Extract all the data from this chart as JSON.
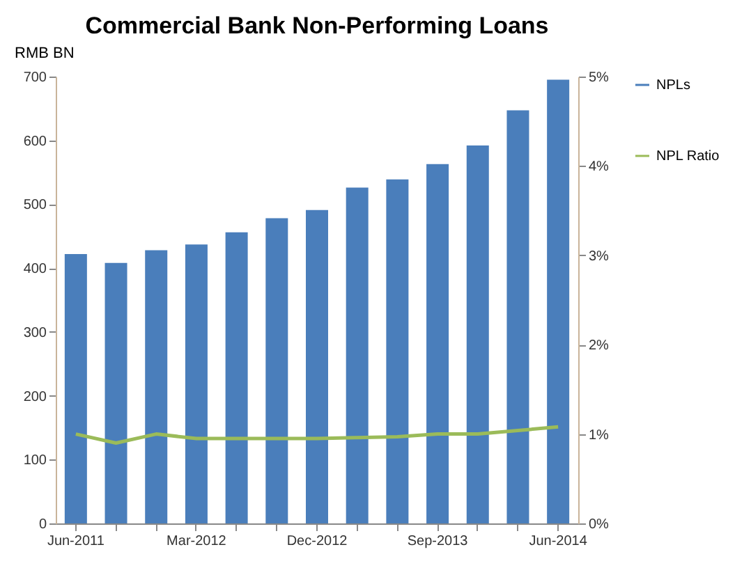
{
  "chart_data": {
    "type": "bar",
    "title": "Commercial Bank Non-Performing Loans",
    "ylabel": "RMB BN",
    "categories": [
      "Jun-2011",
      null,
      null,
      "Mar-2012",
      null,
      null,
      "Dec-2012",
      null,
      null,
      "Sep-2013",
      null,
      null,
      "Jun-2014"
    ],
    "series": [
      {
        "name": "NPLs",
        "color": "#4a7ebb",
        "values": [
          422,
          408,
          428,
          437,
          456,
          478,
          491,
          526,
          539,
          563,
          592,
          647,
          695
        ]
      },
      {
        "name": "NPL Ratio",
        "type": "line",
        "axis": "y2",
        "color": "#9bbb59",
        "values": [
          1.0,
          0.9,
          1.0,
          0.95,
          0.95,
          0.95,
          0.95,
          0.96,
          0.97,
          1.0,
          1.0,
          1.04,
          1.08
        ]
      }
    ],
    "ylim": [
      0,
      700
    ],
    "yticks": [
      0,
      100,
      200,
      300,
      400,
      500,
      600,
      700
    ],
    "y2lim": [
      0,
      5
    ],
    "y2ticks": [
      {
        "value": 0,
        "label": "0%"
      },
      {
        "value": 1,
        "label": "1%"
      },
      {
        "value": 2,
        "label": "2%"
      },
      {
        "value": 3,
        "label": "3%"
      },
      {
        "value": 4,
        "label": "4%"
      },
      {
        "value": 5,
        "label": "5%"
      }
    ],
    "grid": false,
    "legend": "right"
  }
}
